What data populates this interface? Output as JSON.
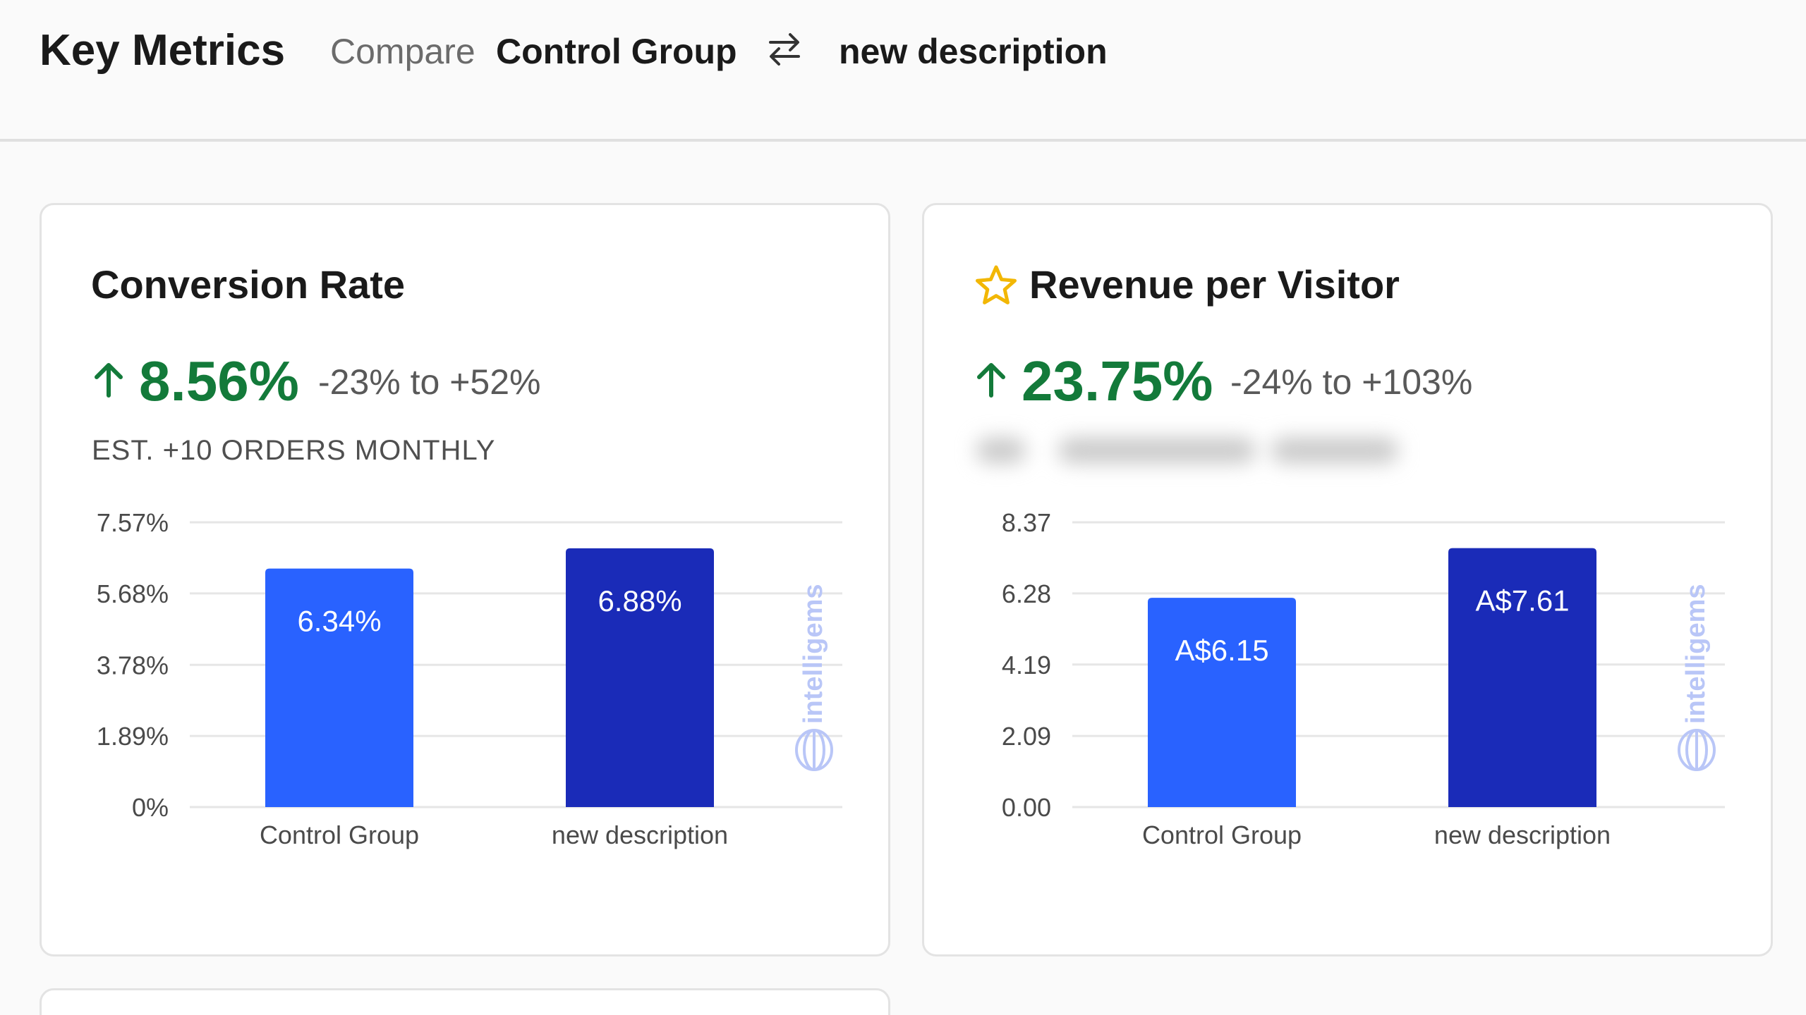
{
  "header": {
    "title": "Key Metrics",
    "compare_label": "Compare",
    "variant_a": "Control Group",
    "variant_b": "new description",
    "swap_icon": "swap-arrows-icon"
  },
  "colors": {
    "control_bar": "#2962ff",
    "variant_bar": "#1a2bb8",
    "positive": "#137a3a",
    "star": "#f2b705"
  },
  "cards": [
    {
      "title": "Conversion Rate",
      "starred": false,
      "lift": "8.56%",
      "range": "-23% to +52%",
      "estimate": "EST. +10 ORDERS MONTHLY",
      "watermark": "intelligems"
    },
    {
      "title": "Revenue per Visitor",
      "starred": true,
      "star_icon": "star-outline-icon",
      "lift": "23.75%",
      "range": "-24% to +103%",
      "estimate_blurred": true,
      "watermark": "intelligems"
    }
  ],
  "chart_data": [
    {
      "type": "bar",
      "title": "Conversion Rate",
      "categories": [
        "Control Group",
        "new description"
      ],
      "values": [
        6.34,
        6.88
      ],
      "value_labels": [
        "6.34%",
        "6.88%"
      ],
      "yticks": [
        0,
        1.89,
        3.78,
        5.68,
        7.57
      ],
      "ytick_labels": [
        "0%",
        "1.89%",
        "3.78%",
        "5.68%",
        "7.57%"
      ],
      "ylim": [
        0,
        7.57
      ],
      "grid": true,
      "legend": "none"
    },
    {
      "type": "bar",
      "title": "Revenue per Visitor",
      "categories": [
        "Control Group",
        "new description"
      ],
      "values": [
        6.15,
        7.61
      ],
      "value_labels": [
        "A$6.15",
        "A$7.61"
      ],
      "yticks": [
        0,
        2.09,
        4.19,
        6.28,
        8.37
      ],
      "ytick_labels": [
        "0.00",
        "2.09",
        "4.19",
        "6.28",
        "8.37"
      ],
      "ylim": [
        0,
        8.37
      ],
      "grid": true,
      "legend": "none"
    }
  ]
}
